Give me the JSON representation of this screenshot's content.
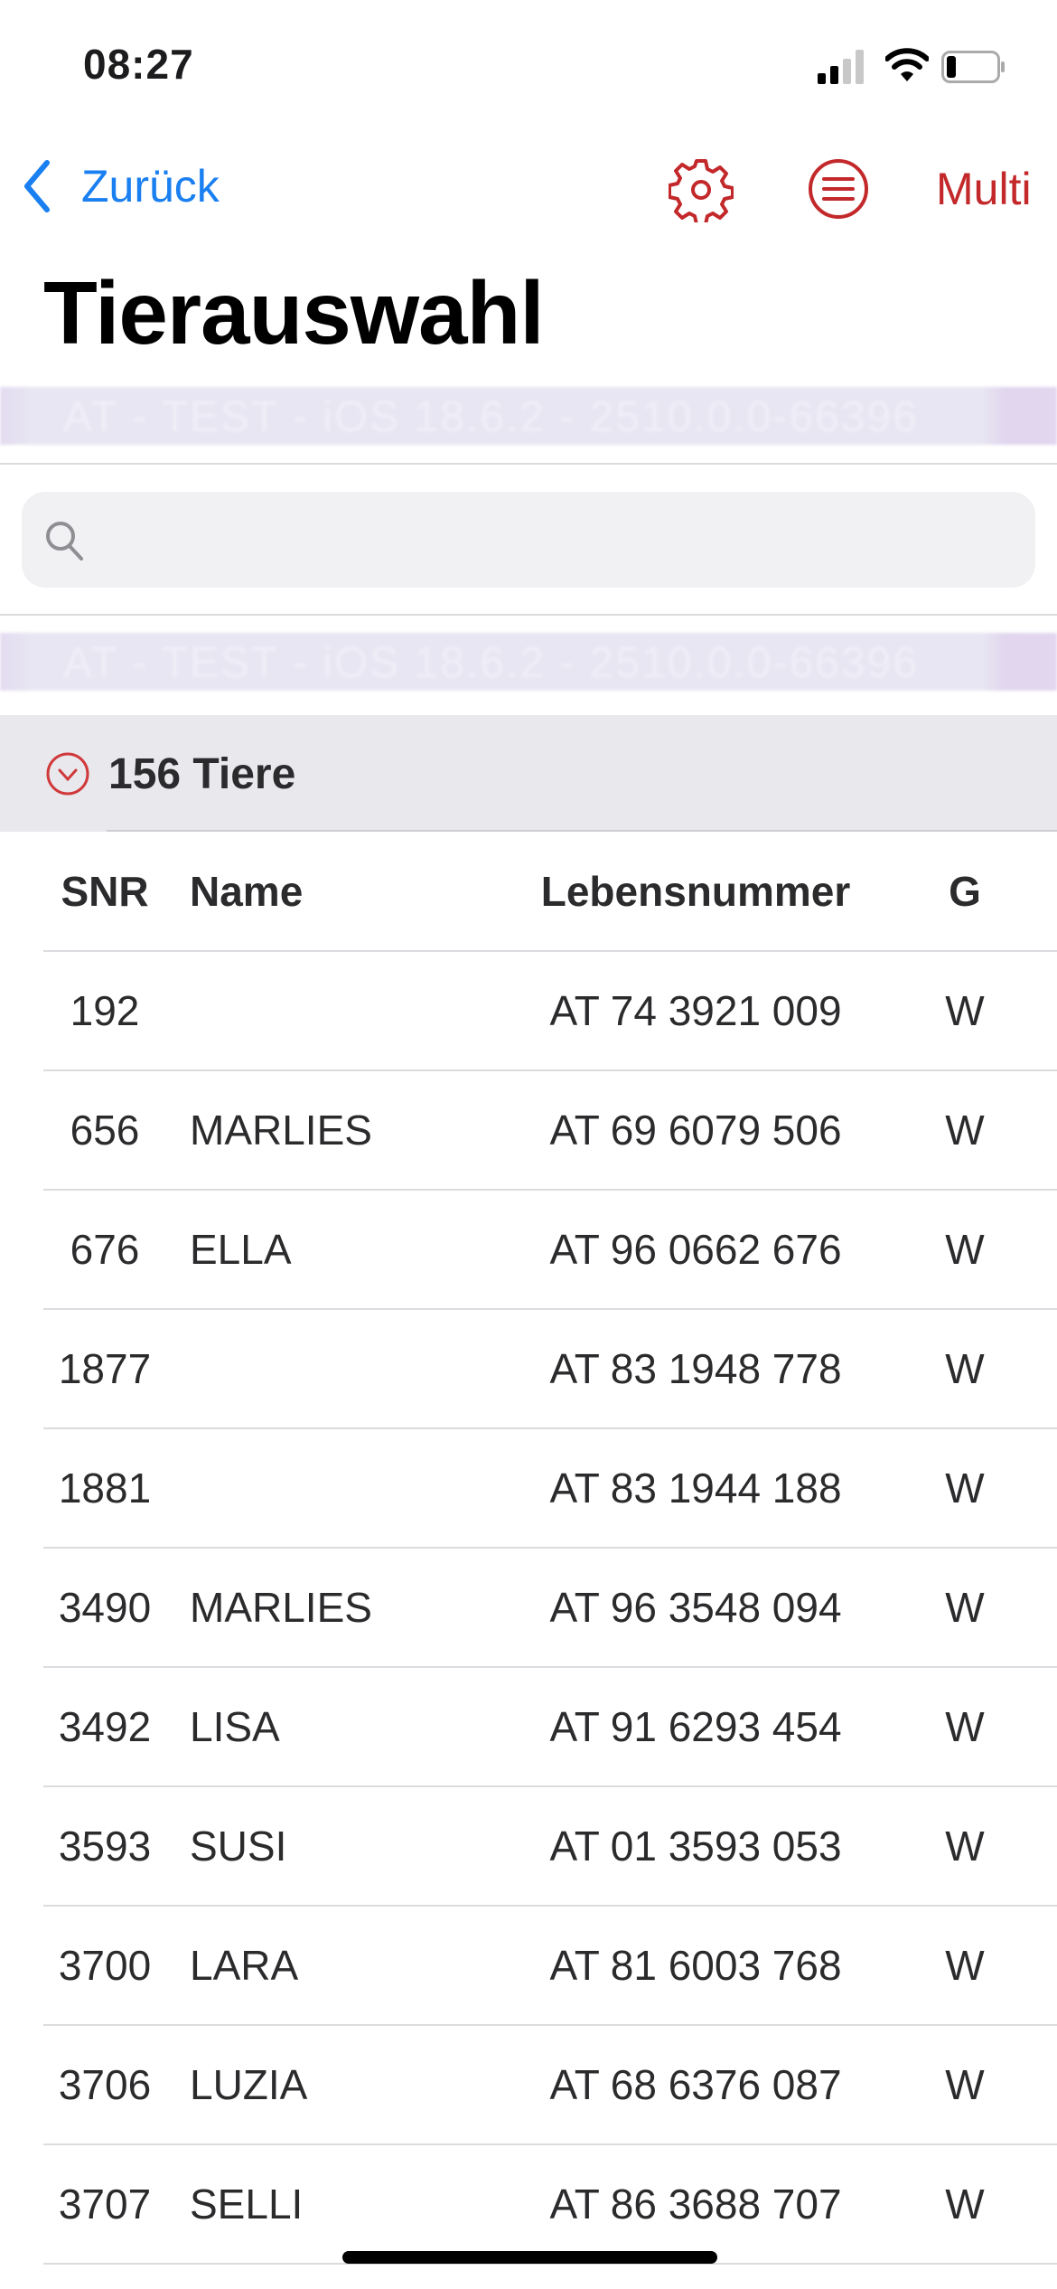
{
  "status_bar": {
    "time": "08:27",
    "signal_bars": 2,
    "battery_level": 0.2
  },
  "nav": {
    "back_label": "Zurück",
    "multi_label": "Multi",
    "icons": [
      "settings-gear-icon",
      "list-menu-icon"
    ]
  },
  "title": "Tierauswahl",
  "banner_text": "AT - TEST - iOS 18.6.2 - 2510.0.0-66396",
  "search": {
    "value": "",
    "placeholder": ""
  },
  "section": {
    "label": "156 Tiere"
  },
  "table": {
    "headers": {
      "snr": "SNR",
      "name": "Name",
      "ln": "Lebensnummer",
      "g": "G"
    },
    "rows": [
      {
        "snr": "192",
        "name": "",
        "ln": "AT 74 3921 009",
        "g": "W"
      },
      {
        "snr": "656",
        "name": "MARLIES",
        "ln": "AT 69 6079 506",
        "g": "W"
      },
      {
        "snr": "676",
        "name": "ELLA",
        "ln": "AT 96 0662 676",
        "g": "W"
      },
      {
        "snr": "1877",
        "name": "",
        "ln": "AT 83 1948 778",
        "g": "W"
      },
      {
        "snr": "1881",
        "name": "",
        "ln": "AT 83 1944 188",
        "g": "W"
      },
      {
        "snr": "3490",
        "name": "MARLIES",
        "ln": "AT 96 3548 094",
        "g": "W"
      },
      {
        "snr": "3492",
        "name": "LISA",
        "ln": "AT 91 6293 454",
        "g": "W"
      },
      {
        "snr": "3593",
        "name": "SUSI",
        "ln": "AT 01 3593 053",
        "g": "W"
      },
      {
        "snr": "3700",
        "name": "LARA",
        "ln": "AT 81 6003 768",
        "g": "W"
      },
      {
        "snr": "3706",
        "name": "LUZIA",
        "ln": "AT 68 6376 087",
        "g": "W"
      },
      {
        "snr": "3707",
        "name": "SELLI",
        "ln": "AT 86 3688 707",
        "g": "W"
      }
    ]
  },
  "colors": {
    "accent_red": "#c3282a",
    "link_blue": "#1a7ff0",
    "section_bg": "#e9e9ed"
  }
}
